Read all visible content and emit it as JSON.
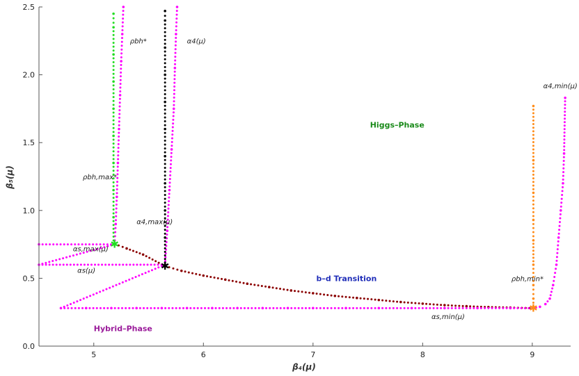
{
  "chart_data": {
    "type": "scatter",
    "xlabel": "β₄(μ)",
    "ylabel": "β₅(μ)",
    "xlim": [
      4.5,
      9.35
    ],
    "ylim": [
      0,
      2.5
    ],
    "xticks": [
      5,
      6,
      7,
      8,
      9
    ],
    "xtick_labels": [
      "5",
      "6",
      "7",
      "8",
      "9"
    ],
    "yticks": [
      0.0,
      0.5,
      1.0,
      1.5,
      2.0,
      2.5
    ],
    "ytick_labels": [
      "0.0",
      "0.5",
      "1.0",
      "1.5",
      "2.0",
      "2.5"
    ],
    "grid": false,
    "series": [
      {
        "color": "#8b0000",
        "points": [
          [
            5.19,
            0.753
          ],
          [
            5.3,
            0.72
          ],
          [
            5.45,
            0.675
          ],
          [
            5.65,
            0.59
          ],
          [
            5.8,
            0.555
          ],
          [
            6.0,
            0.52
          ],
          [
            6.2,
            0.49
          ],
          [
            6.4,
            0.46
          ],
          [
            6.6,
            0.435
          ],
          [
            6.8,
            0.41
          ],
          [
            7.0,
            0.39
          ],
          [
            7.2,
            0.37
          ],
          [
            7.4,
            0.355
          ],
          [
            7.6,
            0.34
          ],
          [
            7.8,
            0.325
          ],
          [
            8.0,
            0.313
          ],
          [
            8.2,
            0.302
          ],
          [
            8.4,
            0.294
          ],
          [
            8.6,
            0.288
          ],
          [
            8.8,
            0.284
          ],
          [
            9.01,
            0.28
          ]
        ]
      },
      {
        "color": "#ff00ff",
        "points": [
          [
            4.5,
            0.75
          ],
          [
            5.19,
            0.75
          ],
          [
            4.5,
            0.6
          ],
          [
            5.65,
            0.6
          ],
          [
            4.7,
            0.28
          ],
          [
            4.93,
            0.28
          ],
          [
            5.16,
            0.28
          ],
          [
            5.39,
            0.28
          ],
          [
            5.62,
            0.28
          ],
          [
            5.85,
            0.28
          ],
          [
            6.08,
            0.28
          ],
          [
            6.31,
            0.28
          ],
          [
            6.54,
            0.28
          ],
          [
            6.77,
            0.28
          ],
          [
            7.0,
            0.28
          ],
          [
            7.3,
            0.28
          ],
          [
            7.6,
            0.28
          ],
          [
            7.9,
            0.28
          ],
          [
            8.2,
            0.28
          ],
          [
            8.5,
            0.28
          ],
          [
            8.8,
            0.28
          ],
          [
            9.0,
            0.28
          ],
          [
            9.07,
            0.29
          ],
          [
            9.12,
            0.31
          ],
          [
            9.16,
            0.35
          ],
          [
            9.19,
            0.45
          ],
          [
            9.22,
            0.6
          ],
          [
            9.24,
            0.8
          ],
          [
            9.26,
            1.0
          ],
          [
            9.28,
            1.2
          ],
          [
            9.29,
            1.42
          ],
          [
            9.3,
            1.83
          ],
          [
            5.19,
            0.75
          ],
          [
            5.2,
            0.9
          ],
          [
            5.21,
            1.1
          ],
          [
            5.22,
            1.35
          ],
          [
            5.23,
            1.6
          ],
          [
            5.24,
            1.85
          ],
          [
            5.25,
            2.1
          ],
          [
            5.26,
            2.3
          ],
          [
            5.27,
            2.5
          ],
          [
            5.65,
            0.6
          ],
          [
            5.67,
            0.85
          ],
          [
            5.69,
            1.15
          ],
          [
            5.71,
            1.45
          ],
          [
            5.73,
            1.75
          ],
          [
            5.74,
            2.05
          ],
          [
            5.75,
            2.3
          ],
          [
            5.76,
            2.5
          ]
        ]
      },
      {
        "color": "#22dd22",
        "points": [
          [
            5.18,
            0.75
          ],
          [
            5.18,
            0.95
          ],
          [
            5.18,
            1.15
          ],
          [
            5.18,
            1.35
          ],
          [
            5.18,
            1.55
          ],
          [
            5.18,
            1.75
          ],
          [
            5.18,
            1.95
          ],
          [
            5.18,
            2.15
          ],
          [
            5.18,
            2.35
          ],
          [
            5.18,
            2.45
          ]
        ]
      },
      {
        "color": "#000000",
        "points": [
          [
            5.65,
            0.59
          ],
          [
            5.65,
            0.8
          ],
          [
            5.65,
            1.0
          ],
          [
            5.65,
            1.2
          ],
          [
            5.65,
            1.4
          ],
          [
            5.65,
            1.6
          ],
          [
            5.65,
            1.8
          ],
          [
            5.65,
            2.0
          ],
          [
            5.65,
            2.2
          ],
          [
            5.65,
            2.4
          ],
          [
            5.65,
            2.47
          ]
        ]
      },
      {
        "color": "#ff8c1a",
        "points": [
          [
            9.01,
            0.29
          ],
          [
            9.01,
            0.35
          ],
          [
            9.01,
            0.45
          ],
          [
            9.01,
            0.6
          ],
          [
            9.01,
            0.78
          ],
          [
            9.01,
            0.93
          ],
          [
            9.01,
            1.13
          ],
          [
            9.01,
            1.37
          ],
          [
            9.01,
            1.77
          ]
        ]
      }
    ],
    "star_markers": [
      {
        "x": 5.19,
        "y": 0.75,
        "color": "#22dd22"
      },
      {
        "x": 5.65,
        "y": 0.59,
        "color": "#000000"
      },
      {
        "x": 9.01,
        "y": 0.28,
        "color": "#ff8c1a"
      }
    ],
    "annotations": [
      {
        "id": "rho-bh-star",
        "text": "ρbh*",
        "x": 5.33,
        "y": 2.23,
        "color": "#222222"
      },
      {
        "id": "alpha4",
        "text": "α4(μ)",
        "x": 5.85,
        "y": 2.23,
        "color": "#222222"
      },
      {
        "id": "alpha4min",
        "text": "α4,min(μ)",
        "x": 9.1,
        "y": 1.9,
        "color": "#222222"
      },
      {
        "id": "rho-bh-max",
        "text": "ρbh,max*",
        "x": 4.9,
        "y": 1.23,
        "color": "#222222"
      },
      {
        "id": "alpha4max",
        "text": "α4,max(μ)",
        "x": 5.39,
        "y": 0.9,
        "color": "#222222"
      },
      {
        "id": "alpha-s-max",
        "text": "αs,max(μ)",
        "x": 4.81,
        "y": 0.7,
        "color": "#222222"
      },
      {
        "id": "alpha-s",
        "text": "αs(μ)",
        "x": 4.85,
        "y": 0.54,
        "color": "#222222"
      },
      {
        "id": "rho-bh-min",
        "text": "ρbh,min*",
        "x": 8.81,
        "y": 0.48,
        "color": "#222222"
      },
      {
        "id": "alpha-s-min",
        "text": "αs,min(μ)",
        "x": 8.08,
        "y": 0.2,
        "color": "#222222"
      },
      {
        "id": "higgs-phase",
        "text": "Higgs–Phase",
        "x": 7.52,
        "y": 1.61,
        "color": "#1a8a1a"
      },
      {
        "id": "bd-transition",
        "text": "b–d Transition",
        "x": 7.03,
        "y": 0.48,
        "color": "#1f2db8"
      },
      {
        "id": "hybrid-phase",
        "text": "Hybrid–Phase",
        "x": 5.0,
        "y": 0.11,
        "color": "#9a1a9a"
      }
    ]
  }
}
